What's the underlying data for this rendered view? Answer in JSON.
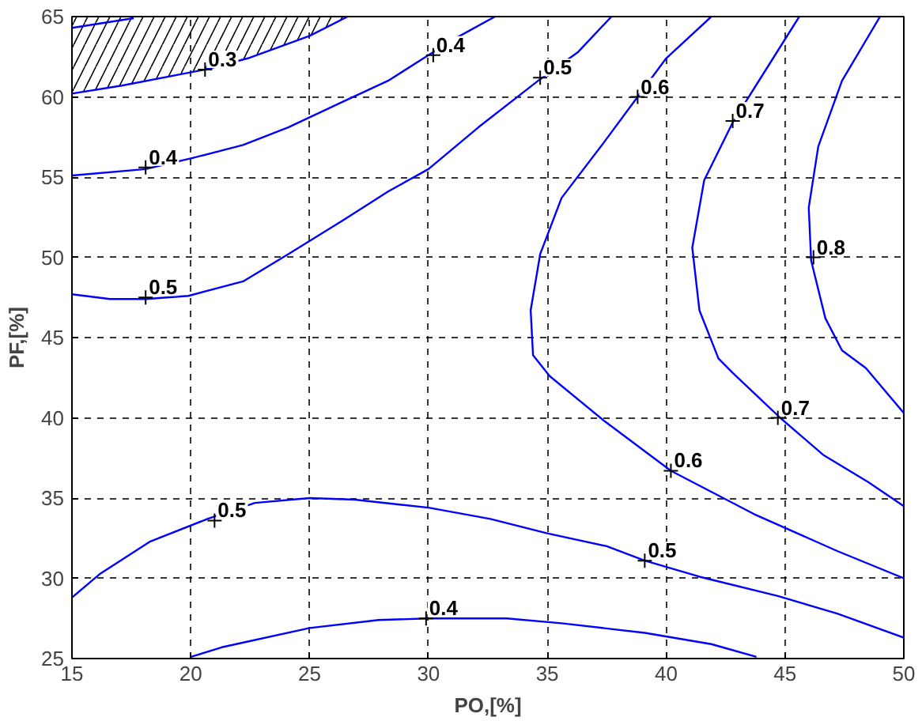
{
  "chart_data": {
    "type": "line",
    "xlabel": "PO,[%]",
    "ylabel": "PF,[%]",
    "xlim": [
      15,
      50
    ],
    "ylim": [
      25,
      65
    ],
    "xticks": [
      15,
      20,
      25,
      30,
      35,
      40,
      45,
      50
    ],
    "yticks": [
      25,
      30,
      35,
      40,
      45,
      50,
      55,
      60,
      65
    ],
    "grid": true,
    "line_style": "solid",
    "marker": "none",
    "series": [
      {
        "color": "#0000ff",
        "x": [
          15,
          17.1,
          20.6,
          22.4,
          25,
          26.6
        ],
        "values": [
          60.2,
          60.7,
          61.7,
          62.4,
          63.8,
          65
        ],
        "lower": [
          60.2,
          60.7,
          61.7,
          62.4,
          63.8,
          65
        ],
        "upper": [
          65,
          65,
          65,
          65,
          65,
          65
        ]
      },
      {
        "color": "#0000ff",
        "x": [
          15,
          17.6
        ],
        "values": [
          64.3,
          64.9
        ]
      },
      {
        "color": "#0000ff",
        "x": [
          15,
          18.1,
          20.1,
          22.2,
          24.1,
          26.4,
          28.3,
          30,
          31.2,
          32.8
        ],
        "values": [
          55.1,
          55.5,
          56.2,
          57.0,
          58.1,
          59.7,
          61.0,
          62.6,
          63.7,
          65
        ]
      },
      {
        "color": "#0000ff",
        "x": [
          15,
          16.6,
          18.1,
          19.9,
          22.2,
          24.1,
          26.4,
          28.3,
          30,
          32.1,
          34.7,
          36.3,
          37.7
        ],
        "values": [
          47.7,
          47.4,
          47.4,
          47.6,
          48.5,
          50.2,
          52.3,
          54.1,
          55.5,
          58.1,
          61.1,
          62.8,
          65
        ]
      },
      {
        "color": "#0000ff",
        "x": [
          41.9,
          40,
          38.8,
          37.4,
          35.6,
          34.7,
          34.3,
          34.4,
          35.1,
          37.4,
          40.2,
          43.7,
          47.2,
          50
        ],
        "values": [
          65,
          62.4,
          60,
          57.2,
          53.7,
          50.2,
          46.7,
          43.9,
          42.6,
          39.8,
          36.7,
          34.0,
          31.7,
          30.0
        ]
      },
      {
        "color": "#0000ff",
        "x": [
          45.6,
          44.2,
          42.8,
          41.6,
          41.1,
          41.4,
          42.2,
          42.8,
          44.8,
          46.6,
          48.5,
          50
        ],
        "values": [
          65,
          61.7,
          58.4,
          54.8,
          50.6,
          46.7,
          43.7,
          42.8,
          40.0,
          37.7,
          36.0,
          34.5
        ]
      },
      {
        "color": "#0000ff",
        "x": [
          49,
          47.4,
          46.4,
          46.0,
          46.1,
          46.7,
          47.4,
          48.4,
          50
        ],
        "values": [
          65,
          61.0,
          56.9,
          53.1,
          49.8,
          46.2,
          44.2,
          43.1,
          40.3
        ]
      },
      {
        "color": "#0000ff",
        "x": [
          15,
          16.2,
          18.3,
          20.7,
          22.7,
          25,
          26.9,
          30,
          32.6,
          35,
          37.5,
          39.1,
          41.4,
          44.7,
          47.2,
          50
        ],
        "values": [
          28.8,
          30.3,
          32.3,
          33.7,
          34.7,
          35.0,
          34.9,
          34.4,
          33.7,
          32.8,
          32.0,
          31.1,
          30.1,
          28.9,
          27.8,
          26.3
        ]
      },
      {
        "color": "#0000ff",
        "x": [
          20,
          21.3,
          25,
          27.9,
          30,
          33.3,
          35.6,
          39.1,
          41.9,
          43.8
        ],
        "values": [
          25.1,
          25.7,
          26.9,
          27.4,
          27.5,
          27.5,
          27.2,
          26.6,
          25.9,
          25.1
        ]
      }
    ],
    "annotations": [
      {
        "text": "0.3",
        "x": 20.6,
        "y": 61.7
      },
      {
        "text": "0.4",
        "x": 18.1,
        "y": 55.6
      },
      {
        "text": "0.5",
        "x": 18.1,
        "y": 47.5
      },
      {
        "text": "0.4",
        "x": 30.2,
        "y": 62.6
      },
      {
        "text": "0.5",
        "x": 34.7,
        "y": 61.2
      },
      {
        "text": "0.6",
        "x": 38.8,
        "y": 60.0
      },
      {
        "text": "0.7",
        "x": 42.8,
        "y": 58.5
      },
      {
        "text": "0.8",
        "x": 46.2,
        "y": 50.0
      },
      {
        "text": "0.7",
        "x": 44.7,
        "y": 40.0
      },
      {
        "text": "0.6",
        "x": 40.2,
        "y": 36.7
      },
      {
        "text": "0.5",
        "x": 21.0,
        "y": 33.6
      },
      {
        "text": "0.5",
        "x": 39.1,
        "y": 31.1
      },
      {
        "text": "0.4",
        "x": 29.9,
        "y": 27.5
      }
    ]
  }
}
